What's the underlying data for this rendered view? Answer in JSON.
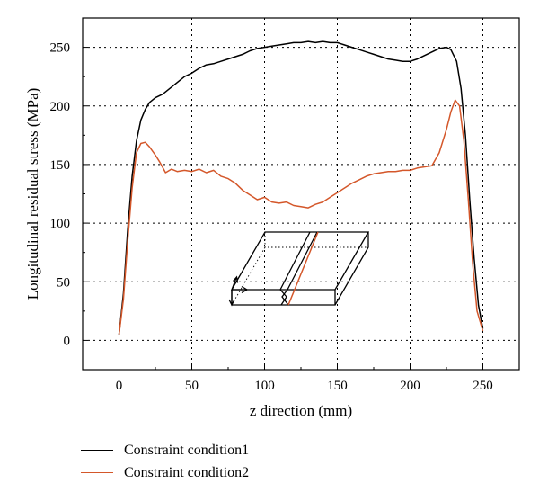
{
  "chart_data": {
    "type": "line",
    "xlabel": "z direction (mm)",
    "ylabel": "Longitudinal residual stress (MPa)",
    "xlim": [
      -25,
      275
    ],
    "ylim": [
      -25,
      275
    ],
    "xticks": [
      0,
      50,
      100,
      150,
      200,
      250
    ],
    "yticks": [
      0,
      50,
      100,
      150,
      200,
      250
    ],
    "grid": true,
    "legend_position": "bottom",
    "series": [
      {
        "name": "Constraint condition1",
        "color": "#000000",
        "x": [
          0,
          3,
          6,
          9,
          12,
          15,
          18,
          21,
          25,
          30,
          35,
          40,
          45,
          50,
          55,
          60,
          65,
          70,
          75,
          80,
          85,
          90,
          95,
          100,
          105,
          110,
          115,
          120,
          125,
          130,
          135,
          140,
          145,
          150,
          155,
          160,
          165,
          170,
          175,
          180,
          185,
          190,
          195,
          200,
          205,
          210,
          215,
          220,
          225,
          228,
          232,
          235,
          238,
          241,
          244,
          247,
          250
        ],
        "y": [
          5,
          40,
          95,
          140,
          170,
          188,
          197,
          203,
          207,
          210,
          215,
          220,
          225,
          228,
          232,
          235,
          236,
          238,
          240,
          242,
          244,
          247,
          249,
          250,
          251,
          252,
          253,
          254,
          254,
          255,
          254,
          255,
          254,
          254,
          252,
          250,
          248,
          246,
          244,
          242,
          240,
          239,
          238,
          238,
          240,
          243,
          246,
          249,
          250,
          248,
          238,
          215,
          175,
          120,
          70,
          30,
          10
        ]
      },
      {
        "name": "Constraint condition2",
        "color": "#d4572a",
        "x": [
          0,
          3,
          6,
          9,
          12,
          15,
          18,
          21,
          25,
          28,
          32,
          36,
          40,
          45,
          50,
          55,
          60,
          65,
          70,
          75,
          80,
          85,
          90,
          95,
          100,
          105,
          110,
          115,
          120,
          125,
          130,
          135,
          140,
          145,
          150,
          155,
          160,
          165,
          170,
          175,
          180,
          185,
          190,
          195,
          200,
          205,
          210,
          215,
          220,
          225,
          228,
          231,
          234,
          237,
          240,
          243,
          246,
          250
        ],
        "y": [
          5,
          35,
          85,
          130,
          160,
          168,
          169,
          165,
          158,
          152,
          143,
          146,
          144,
          145,
          144,
          146,
          143,
          145,
          140,
          138,
          134,
          128,
          124,
          120,
          122,
          118,
          117,
          118,
          115,
          114,
          113,
          116,
          118,
          122,
          126,
          130,
          134,
          137,
          140,
          142,
          143,
          144,
          144,
          145,
          145,
          147,
          148,
          149,
          160,
          180,
          195,
          205,
          200,
          170,
          120,
          65,
          25,
          8
        ]
      }
    ]
  }
}
